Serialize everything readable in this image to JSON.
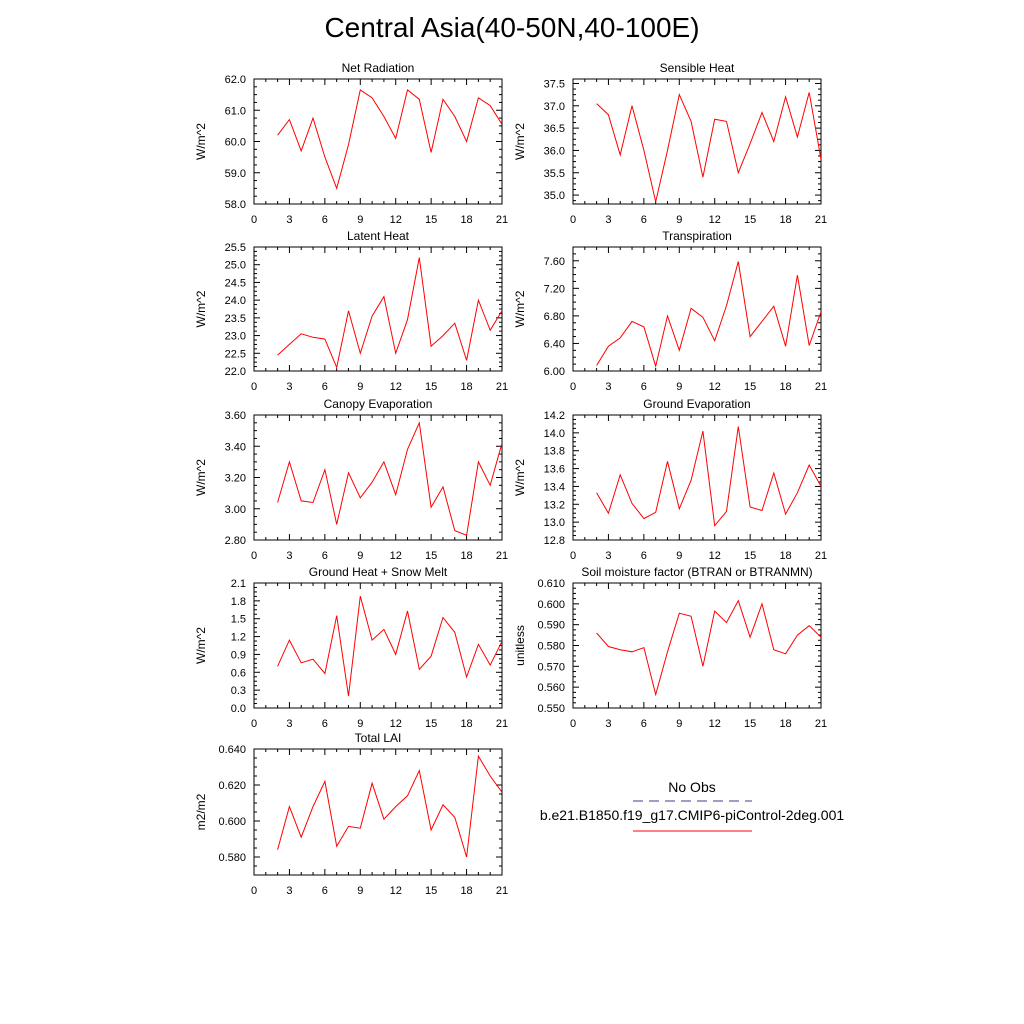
{
  "page_title": "Central Asia(40-50N,40-100E)",
  "legend": {
    "obs_label": "No Obs",
    "obs_color": "#3b3b8c",
    "model_label": "b.e21.B1850.f19_g17.CMIP6-piControl-2deg.001",
    "model_color": "#ff0000"
  },
  "chart_data": [
    {
      "type": "line",
      "title": "Net Radiation",
      "ylabel": "W/m^2",
      "xlabel": "",
      "xlim": [
        0,
        21
      ],
      "ylim": [
        58.0,
        62.0
      ],
      "xticks": [
        "0",
        "3",
        "6",
        "9",
        "12",
        "15",
        "18",
        "21"
      ],
      "yticks": [
        "58.0",
        "59.0",
        "60.0",
        "61.0",
        "62.0"
      ],
      "x": [
        2,
        3,
        4,
        5,
        6,
        7,
        8,
        9,
        10,
        11,
        12,
        13,
        14,
        15,
        16,
        17,
        18,
        19,
        20,
        21
      ],
      "series": [
        {
          "values": [
            60.2,
            60.7,
            59.7,
            60.75,
            59.5,
            58.5,
            59.9,
            61.65,
            61.4,
            60.8,
            60.1,
            61.65,
            61.35,
            59.65,
            61.35,
            60.8,
            60.0,
            61.4,
            61.15,
            60.55
          ]
        }
      ]
    },
    {
      "type": "line",
      "title": "Sensible Heat",
      "ylabel": "W/m^2",
      "xlabel": "",
      "xlim": [
        0,
        21
      ],
      "ylim": [
        34.8,
        37.6
      ],
      "xticks": [
        "0",
        "3",
        "6",
        "9",
        "12",
        "15",
        "18",
        "21"
      ],
      "yticks": [
        "35.0",
        "35.5",
        "36.0",
        "36.5",
        "37.0",
        "37.5"
      ],
      "x": [
        2,
        3,
        4,
        5,
        6,
        7,
        8,
        9,
        10,
        11,
        12,
        13,
        14,
        15,
        16,
        17,
        18,
        19,
        20,
        21
      ],
      "series": [
        {
          "values": [
            37.05,
            36.8,
            35.9,
            37.0,
            36.0,
            34.85,
            36.0,
            37.25,
            36.65,
            35.4,
            36.7,
            36.65,
            35.5,
            36.15,
            36.85,
            36.2,
            37.2,
            36.3,
            37.3,
            35.8
          ]
        }
      ]
    },
    {
      "type": "line",
      "title": "Latent Heat",
      "ylabel": "W/m^2",
      "xlabel": "",
      "xlim": [
        0,
        21
      ],
      "ylim": [
        22.0,
        25.5
      ],
      "xticks": [
        "0",
        "3",
        "6",
        "9",
        "12",
        "15",
        "18",
        "21"
      ],
      "yticks": [
        "22.0",
        "22.5",
        "23.0",
        "23.5",
        "24.0",
        "24.5",
        "25.0",
        "25.5"
      ],
      "x": [
        2,
        3,
        4,
        5,
        6,
        7,
        8,
        9,
        10,
        11,
        12,
        13,
        14,
        15,
        16,
        17,
        18,
        19,
        20,
        21
      ],
      "series": [
        {
          "values": [
            22.45,
            22.75,
            23.05,
            22.95,
            22.9,
            22.1,
            23.7,
            22.5,
            23.55,
            24.1,
            22.5,
            23.45,
            25.2,
            22.7,
            23.0,
            23.35,
            22.3,
            24.0,
            23.15,
            23.7
          ]
        }
      ]
    },
    {
      "type": "line",
      "title": "Transpiration",
      "ylabel": "W/m^2",
      "xlabel": "",
      "xlim": [
        0,
        21
      ],
      "ylim": [
        6.0,
        7.8
      ],
      "xticks": [
        "0",
        "3",
        "6",
        "9",
        "12",
        "15",
        "18",
        "21"
      ],
      "yticks": [
        "6.00",
        "6.40",
        "6.80",
        "7.20",
        "7.60"
      ],
      "x": [
        2,
        3,
        4,
        5,
        6,
        7,
        8,
        9,
        10,
        11,
        12,
        13,
        14,
        15,
        16,
        17,
        18,
        19,
        20,
        21
      ],
      "series": [
        {
          "values": [
            6.08,
            6.36,
            6.48,
            6.72,
            6.64,
            6.07,
            6.8,
            6.3,
            6.91,
            6.78,
            6.44,
            6.95,
            7.59,
            6.5,
            6.72,
            6.94,
            6.36,
            7.39,
            6.37,
            6.86
          ]
        }
      ]
    },
    {
      "type": "line",
      "title": "Canopy Evaporation",
      "ylabel": "W/m^2",
      "xlabel": "",
      "xlim": [
        0,
        21
      ],
      "ylim": [
        2.8,
        3.6
      ],
      "xticks": [
        "0",
        "3",
        "6",
        "9",
        "12",
        "15",
        "18",
        "21"
      ],
      "yticks": [
        "2.80",
        "3.00",
        "3.20",
        "3.40",
        "3.60"
      ],
      "x": [
        2,
        3,
        4,
        5,
        6,
        7,
        8,
        9,
        10,
        11,
        12,
        13,
        14,
        15,
        16,
        17,
        18,
        19,
        20,
        21
      ],
      "series": [
        {
          "values": [
            3.04,
            3.3,
            3.05,
            3.04,
            3.25,
            2.9,
            3.23,
            3.07,
            3.17,
            3.3,
            3.09,
            3.38,
            3.55,
            3.01,
            3.14,
            2.86,
            2.83,
            3.3,
            3.15,
            3.42
          ]
        }
      ]
    },
    {
      "type": "line",
      "title": "Ground Evaporation",
      "ylabel": "W/m^2",
      "xlabel": "",
      "xlim": [
        0,
        21
      ],
      "ylim": [
        12.8,
        14.2
      ],
      "xticks": [
        "0",
        "3",
        "6",
        "9",
        "12",
        "15",
        "18",
        "21"
      ],
      "yticks": [
        "12.8",
        "13.0",
        "13.2",
        "13.4",
        "13.6",
        "13.8",
        "14.0",
        "14.2"
      ],
      "x": [
        2,
        3,
        4,
        5,
        6,
        7,
        8,
        9,
        10,
        11,
        12,
        13,
        14,
        15,
        16,
        17,
        18,
        19,
        20,
        21
      ],
      "series": [
        {
          "values": [
            13.33,
            13.1,
            13.53,
            13.21,
            13.04,
            13.11,
            13.68,
            13.15,
            13.47,
            14.02,
            12.96,
            13.12,
            14.07,
            13.17,
            13.13,
            13.55,
            13.09,
            13.33,
            13.64,
            13.4
          ]
        }
      ]
    },
    {
      "type": "line",
      "title": "Ground Heat + Snow Melt",
      "ylabel": "W/m^2",
      "xlabel": "",
      "xlim": [
        0,
        21
      ],
      "ylim": [
        0.0,
        2.1
      ],
      "xticks": [
        "0",
        "3",
        "6",
        "9",
        "12",
        "15",
        "18",
        "21"
      ],
      "yticks": [
        "0.0",
        "0.3",
        "0.6",
        "0.9",
        "1.2",
        "1.5",
        "1.8",
        "2.1"
      ],
      "x": [
        2,
        3,
        4,
        5,
        6,
        7,
        8,
        9,
        10,
        11,
        12,
        13,
        14,
        15,
        16,
        17,
        18,
        19,
        20,
        21
      ],
      "series": [
        {
          "values": [
            0.7,
            1.14,
            0.76,
            0.82,
            0.58,
            1.55,
            0.2,
            1.88,
            1.14,
            1.32,
            0.9,
            1.63,
            0.65,
            0.87,
            1.52,
            1.27,
            0.52,
            1.07,
            0.72,
            1.12
          ]
        }
      ]
    },
    {
      "type": "line",
      "title": "Soil moisture factor (BTRAN or BTRANMN)",
      "ylabel": "unitless",
      "xlabel": "",
      "xlim": [
        0,
        21
      ],
      "ylim": [
        0.55,
        0.61
      ],
      "xticks": [
        "0",
        "3",
        "6",
        "9",
        "12",
        "15",
        "18",
        "21"
      ],
      "yticks": [
        "0.550",
        "0.560",
        "0.570",
        "0.580",
        "0.590",
        "0.600",
        "0.610"
      ],
      "x": [
        2,
        3,
        4,
        5,
        6,
        7,
        8,
        9,
        10,
        11,
        12,
        13,
        14,
        15,
        16,
        17,
        18,
        19,
        20,
        21
      ],
      "series": [
        {
          "values": [
            0.586,
            0.5795,
            0.578,
            0.577,
            0.579,
            0.5565,
            0.577,
            0.5955,
            0.594,
            0.57,
            0.5965,
            0.591,
            0.6015,
            0.584,
            0.6,
            0.578,
            0.576,
            0.585,
            0.5895,
            0.584
          ]
        }
      ]
    },
    {
      "type": "line",
      "title": "Total LAI",
      "ylabel": "m2/m2",
      "xlabel": "",
      "xlim": [
        0,
        21
      ],
      "ylim": [
        0.57,
        0.64
      ],
      "xticks": [
        "0",
        "3",
        "6",
        "9",
        "12",
        "15",
        "18",
        "21"
      ],
      "yticks": [
        "0.580",
        "0.600",
        "0.620",
        "0.640"
      ],
      "x": [
        2,
        3,
        4,
        5,
        6,
        7,
        8,
        9,
        10,
        11,
        12,
        13,
        14,
        15,
        16,
        17,
        18,
        19,
        20,
        21
      ],
      "series": [
        {
          "values": [
            0.584,
            0.608,
            0.591,
            0.608,
            0.622,
            0.586,
            0.597,
            0.596,
            0.621,
            0.601,
            0.608,
            0.614,
            0.628,
            0.595,
            0.609,
            0.602,
            0.58,
            0.636,
            0.625,
            0.616
          ]
        }
      ]
    }
  ]
}
